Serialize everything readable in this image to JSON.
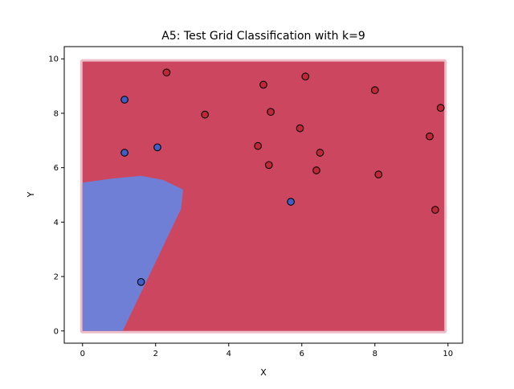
{
  "chart_data": {
    "type": "scatter",
    "title": "A5: Test Grid Classification with k=9",
    "xlabel": "X",
    "ylabel": "Y",
    "xlim": [
      -0.5,
      10.4
    ],
    "ylim": [
      -0.45,
      10.45
    ],
    "xticks": [
      0,
      2,
      4,
      6,
      8,
      10
    ],
    "yticks": [
      0,
      2,
      4,
      6,
      8,
      10
    ],
    "grid": false,
    "legend": "none",
    "colors": {
      "class0_region": "#6f7fd6",
      "class1_region": "#cc4660",
      "class0_point": "#3d5fc7",
      "class1_point": "#c0283a",
      "point_edge": "#000000"
    },
    "decision_regions": {
      "test_grid_x_range": [
        0,
        9.9
      ],
      "test_grid_y_range": [
        0,
        9.9
      ],
      "background_class": 1,
      "class0_region_polygon": [
        [
          0.0,
          0.0
        ],
        [
          1.1,
          0.0
        ],
        [
          2.7,
          4.5
        ],
        [
          2.75,
          5.2
        ],
        [
          2.2,
          5.55
        ],
        [
          1.6,
          5.7
        ],
        [
          0.8,
          5.6
        ],
        [
          0.0,
          5.45
        ]
      ]
    },
    "training_points": [
      {
        "x": 1.15,
        "y": 8.5,
        "class": 0
      },
      {
        "x": 1.15,
        "y": 6.55,
        "class": 0
      },
      {
        "x": 2.05,
        "y": 6.75,
        "class": 0
      },
      {
        "x": 5.7,
        "y": 4.75,
        "class": 0
      },
      {
        "x": 1.6,
        "y": 1.8,
        "class": 0
      },
      {
        "x": 2.3,
        "y": 9.5,
        "class": 1
      },
      {
        "x": 3.35,
        "y": 7.95,
        "class": 1
      },
      {
        "x": 4.95,
        "y": 9.05,
        "class": 1
      },
      {
        "x": 6.1,
        "y": 9.35,
        "class": 1
      },
      {
        "x": 5.15,
        "y": 8.05,
        "class": 1
      },
      {
        "x": 5.95,
        "y": 7.45,
        "class": 1
      },
      {
        "x": 8.0,
        "y": 8.85,
        "class": 1
      },
      {
        "x": 9.8,
        "y": 8.2,
        "class": 1
      },
      {
        "x": 9.5,
        "y": 7.15,
        "class": 1
      },
      {
        "x": 4.8,
        "y": 6.8,
        "class": 1
      },
      {
        "x": 6.5,
        "y": 6.55,
        "class": 1
      },
      {
        "x": 5.1,
        "y": 6.1,
        "class": 1
      },
      {
        "x": 6.4,
        "y": 5.9,
        "class": 1
      },
      {
        "x": 8.1,
        "y": 5.75,
        "class": 1
      },
      {
        "x": 9.65,
        "y": 4.45,
        "class": 1
      }
    ]
  }
}
